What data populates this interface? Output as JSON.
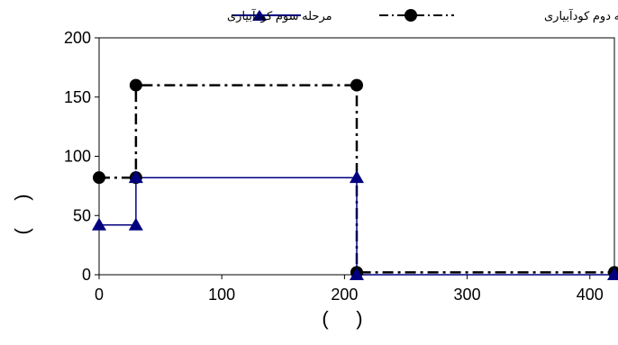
{
  "chart_data": {
    "type": "line",
    "title": "",
    "xlabel": "(     )",
    "ylabel": "(     )",
    "xlim": [
      0,
      420
    ],
    "ylim": [
      0,
      200
    ],
    "x_ticks": [
      0,
      100,
      200,
      300,
      400
    ],
    "y_ticks": [
      0,
      50,
      100,
      150,
      200
    ],
    "x_tick_labels": [
      "0",
      "100",
      "200",
      "300",
      "400"
    ],
    "y_tick_labels": [
      "0",
      "50",
      "100",
      "150",
      "200"
    ],
    "grid": false,
    "legend_position": "top-right",
    "series": [
      {
        "name": "مرحله دوم کودآبیاری",
        "color": "#000000",
        "line_style": "dash-dot",
        "marker": "circle",
        "x": [
          0,
          30,
          30,
          210,
          210,
          420
        ],
        "y": [
          82,
          82,
          160,
          160,
          2,
          2
        ]
      },
      {
        "name": "مرحله سوم کودآبیاری",
        "color": "#000080",
        "line_style": "solid",
        "marker": "triangle",
        "x": [
          0,
          30,
          30,
          210,
          210,
          420
        ],
        "y": [
          42,
          42,
          82,
          82,
          0,
          0
        ]
      }
    ]
  }
}
